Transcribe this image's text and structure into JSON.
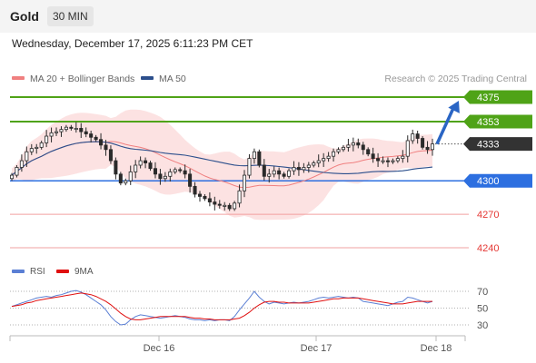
{
  "header": {
    "title": "Gold",
    "interval": "30 MIN",
    "datetime": "Wednesday, December 17, 2025 6:11:23 PM CET",
    "credit": "Research © 2025 Trading Central"
  },
  "chart_data": {
    "type": "candlestick",
    "legend": [
      {
        "name": "MA 20 + Bollinger Bands",
        "color": "#f08080"
      },
      {
        "name": "MA 50",
        "color": "#2c4f8c"
      }
    ],
    "x_labels": [
      "Dec 16",
      "Dec 17",
      "Dec 18"
    ],
    "levels": [
      {
        "label": "4375",
        "value": 4375,
        "color": "#4fa317"
      },
      {
        "label": "4353",
        "value": 4353,
        "color": "#4fa317"
      },
      {
        "label": "4333",
        "value": 4333,
        "color": "#333333"
      },
      {
        "label": "4300",
        "value": 4300,
        "color": "#2d6fe0"
      },
      {
        "label": "4270",
        "value": 4270,
        "color": "#e53935"
      },
      {
        "label": "4240",
        "value": 4240,
        "color": "#e53935"
      }
    ],
    "current_price": 4333,
    "forecast_target": 4375,
    "closes": [
      4305,
      4312,
      4318,
      4326,
      4329,
      4330,
      4334,
      4340,
      4343,
      4344,
      4346,
      4348,
      4347,
      4347,
      4344,
      4342,
      4339,
      4337,
      4332,
      4328,
      4318,
      4306,
      4298,
      4300,
      4308,
      4314,
      4318,
      4316,
      4311,
      4306,
      4302,
      4304,
      4308,
      4310,
      4309,
      4306,
      4295,
      4288,
      4286,
      4284,
      4281,
      4279,
      4278,
      4278,
      4275,
      4280,
      4291,
      4305,
      4320,
      4326,
      4314,
      4304,
      4306,
      4309,
      4306,
      4304,
      4309,
      4312,
      4310,
      4312,
      4314,
      4316,
      4318,
      4320,
      4322,
      4326,
      4328,
      4330,
      4332,
      4334,
      4332,
      4328,
      4324,
      4320,
      4318,
      4318,
      4317,
      4318,
      4320,
      4322,
      4336,
      4342,
      4338,
      4330,
      4328,
      4333
    ],
    "rsi": {
      "legend": [
        {
          "name": "RSI",
          "color": "#5b7fd4"
        },
        {
          "name": "9MA",
          "color": "#e01010"
        }
      ],
      "y_ticks": [
        70,
        50,
        30
      ],
      "values": [
        52,
        54,
        56,
        58,
        60,
        62,
        63,
        64,
        63,
        65,
        66,
        68,
        70,
        71,
        69,
        66,
        62,
        58,
        54,
        48,
        40,
        34,
        30,
        31,
        36,
        40,
        42,
        41,
        40,
        39,
        38,
        39,
        40,
        41,
        40,
        39,
        37,
        36,
        36,
        35,
        36,
        35,
        36,
        36,
        35,
        40,
        48,
        55,
        62,
        70,
        63,
        58,
        55,
        57,
        56,
        55,
        56,
        57,
        56,
        57,
        58,
        60,
        62,
        63,
        62,
        63,
        64,
        63,
        62,
        63,
        62,
        58,
        57,
        56,
        55,
        54,
        53,
        55,
        57,
        58,
        63,
        62,
        60,
        58,
        56,
        58
      ],
      "ma": [
        52,
        53,
        54,
        56,
        57,
        59,
        60,
        61,
        62,
        63,
        64,
        65,
        66,
        67,
        68,
        67,
        66,
        64,
        61,
        58,
        54,
        49,
        44,
        40,
        37,
        36,
        36,
        37,
        38,
        39,
        40,
        40,
        40,
        40,
        40,
        40,
        39,
        38,
        38,
        37,
        37,
        36,
        36,
        36,
        36,
        37,
        38,
        41,
        45,
        50,
        54,
        57,
        58,
        58,
        57,
        57,
        56,
        56,
        56,
        56,
        56,
        57,
        58,
        59,
        60,
        61,
        61,
        62,
        62,
        62,
        62,
        61,
        60,
        59,
        58,
        57,
        56,
        55,
        55,
        55,
        56,
        57,
        58,
        58,
        58,
        58
      ]
    }
  }
}
